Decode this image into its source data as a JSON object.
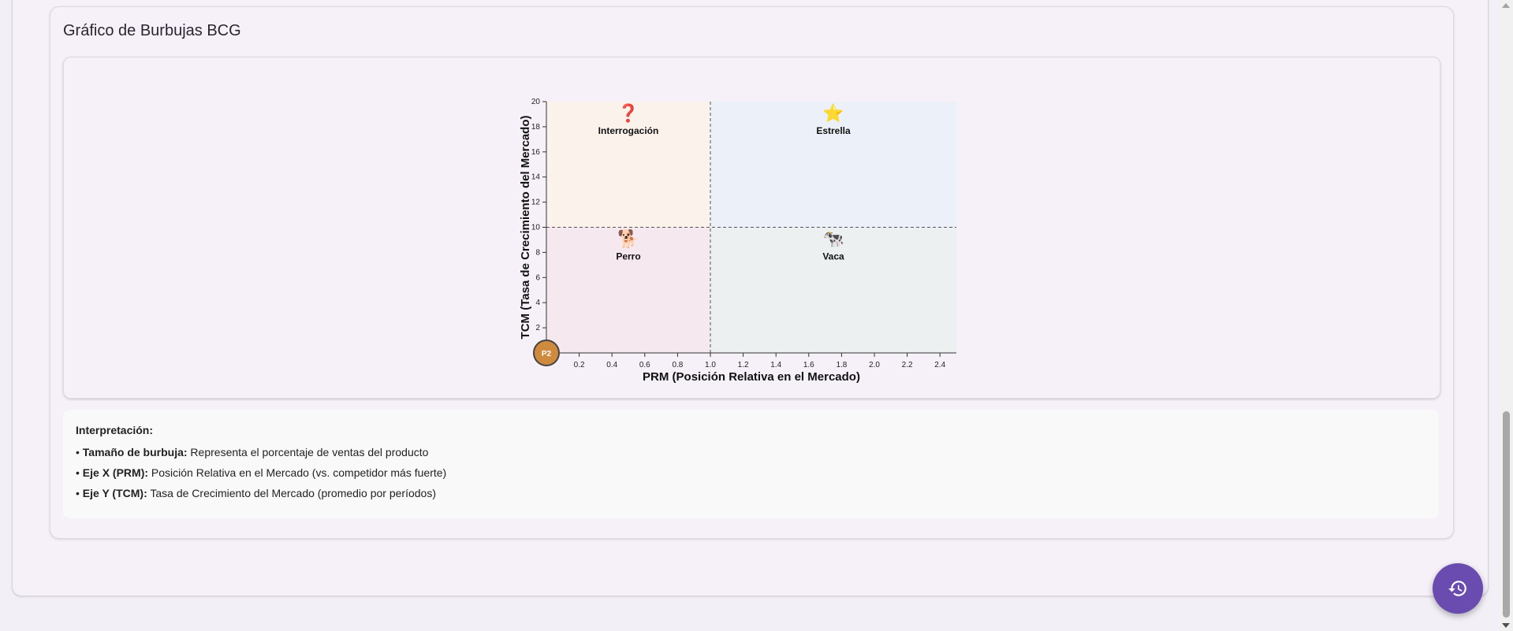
{
  "section": {
    "title": "Gráfico de Burbujas BCG"
  },
  "chart_data": {
    "type": "scatter",
    "xlabel": "PRM (Posición Relativa en el Mercado)",
    "ylabel": "TCM (Tasa de Crecimiento del Mercado)",
    "xlim": [
      0,
      2.5
    ],
    "ylim": [
      0,
      20
    ],
    "x_ticks": [
      "0.2",
      "0.4",
      "0.6",
      "0.8",
      "1.0",
      "1.2",
      "1.4",
      "1.6",
      "1.8",
      "2.0",
      "2.2",
      "2.4"
    ],
    "y_ticks": [
      "2",
      "4",
      "6",
      "8",
      "10",
      "12",
      "14",
      "16",
      "18",
      "20"
    ],
    "x_divider": 1.0,
    "y_divider": 10,
    "quadrants": [
      {
        "name": "Interrogación",
        "icon": "question-mark-icon",
        "glyph": "❓",
        "color": "#fbf2ec"
      },
      {
        "name": "Estrella",
        "icon": "star-icon",
        "glyph": "⭐",
        "color": "#ecf0f8"
      },
      {
        "name": "Perro",
        "icon": "dog-icon",
        "glyph": "🐕",
        "color": "#f6e8ef"
      },
      {
        "name": "Vaca",
        "icon": "cow-icon",
        "glyph": "🐄",
        "color": "#ecf0f0"
      }
    ],
    "points": [
      {
        "label": "P2",
        "x": 0.0,
        "y": 0.0,
        "color": "#d08a3e"
      }
    ]
  },
  "interpretation": {
    "title": "Interpretación:",
    "items": [
      {
        "bullet": "• ",
        "term": "Tamaño de burbuja:",
        "text": " Representa el porcentaje de ventas del producto"
      },
      {
        "bullet": "• ",
        "term": "Eje X (PRM):",
        "text": " Posición Relativa en el Mercado (vs. competidor más fuerte)"
      },
      {
        "bullet": "• ",
        "term": "Eje Y (TCM):",
        "text": " Tasa de Crecimiento del Mercado (promedio por períodos)"
      }
    ]
  },
  "fab": {
    "icon": "history-icon"
  }
}
